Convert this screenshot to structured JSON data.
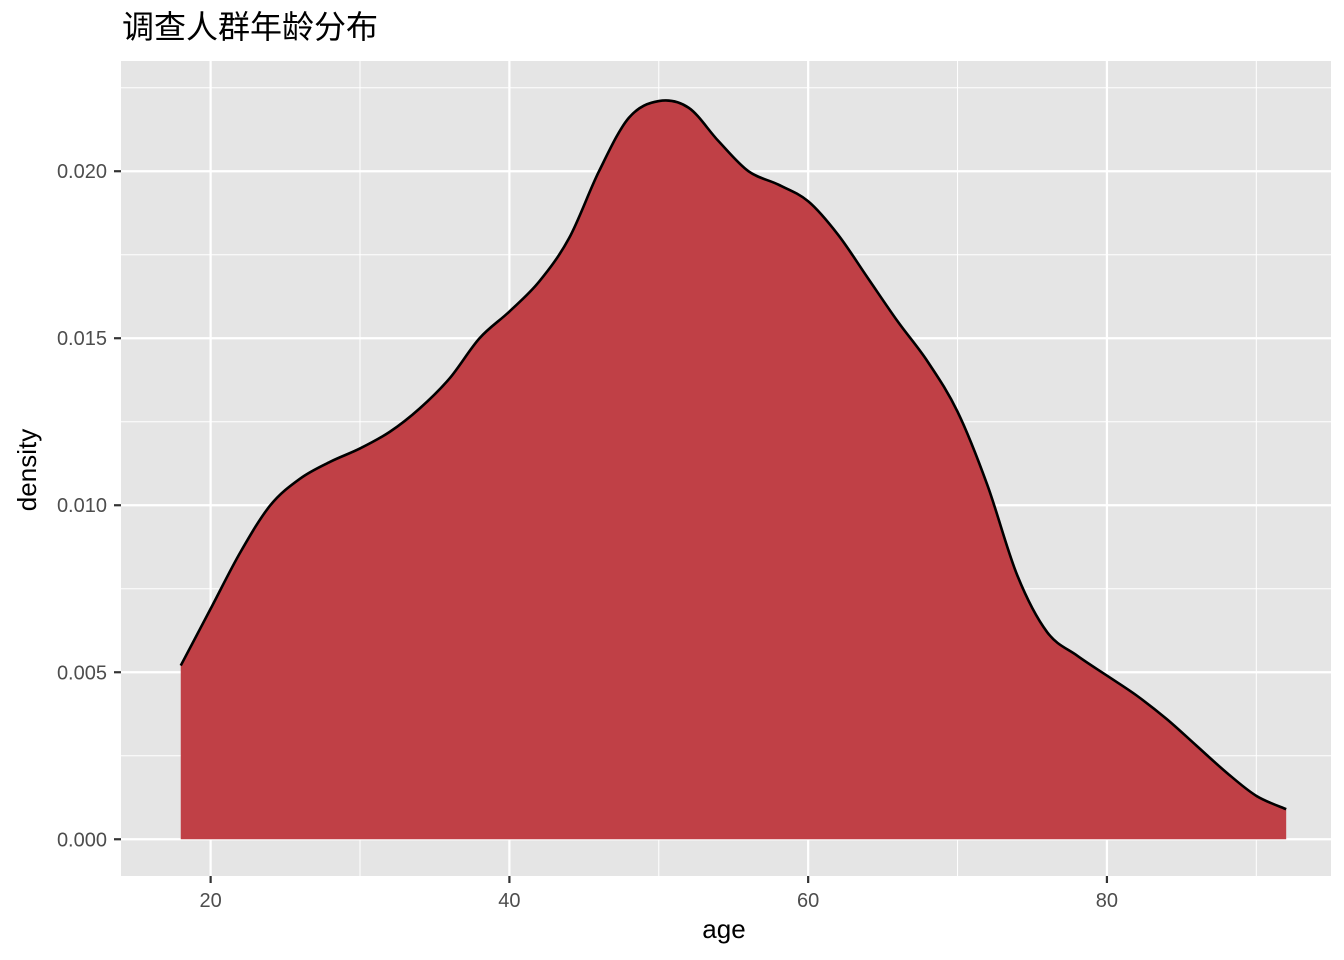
{
  "chart_data": {
    "type": "area",
    "title": "调查人群年龄分布",
    "xlabel": "age",
    "ylabel": "density",
    "xlim": [
      14,
      95
    ],
    "ylim": [
      -0.0011,
      0.0233
    ],
    "x_ticks": [
      20,
      40,
      60,
      80
    ],
    "y_ticks": [
      0.0,
      0.005,
      0.01,
      0.015,
      0.02
    ],
    "x_tick_labels": [
      "20",
      "40",
      "60",
      "80"
    ],
    "y_tick_labels": [
      "0.000",
      "0.005",
      "0.010",
      "0.015",
      "0.020"
    ],
    "grid": true,
    "legend": false,
    "colors": {
      "fill": "#c04046",
      "line": "#000000",
      "panel": "#e5e5e5",
      "grid": "#ffffff"
    },
    "series": [
      {
        "x": [
          18,
          20,
          22,
          24,
          26,
          28,
          30,
          32,
          34,
          36,
          38,
          40,
          42,
          44,
          46,
          48,
          50,
          52,
          54,
          56,
          58,
          60,
          62,
          64,
          66,
          68,
          70,
          72,
          74,
          76,
          78,
          80,
          82,
          84,
          86,
          88,
          90,
          92
        ],
        "y": [
          0.0052,
          0.0069,
          0.0086,
          0.01,
          0.0108,
          0.0113,
          0.0117,
          0.0122,
          0.0129,
          0.0138,
          0.015,
          0.0158,
          0.0167,
          0.018,
          0.02,
          0.0216,
          0.0221,
          0.0219,
          0.0209,
          0.02,
          0.0196,
          0.0191,
          0.0181,
          0.0168,
          0.0155,
          0.0143,
          0.0128,
          0.0106,
          0.0079,
          0.0062,
          0.0055,
          0.0049,
          0.0043,
          0.0036,
          0.0028,
          0.002,
          0.0013,
          0.0009
        ]
      }
    ]
  }
}
